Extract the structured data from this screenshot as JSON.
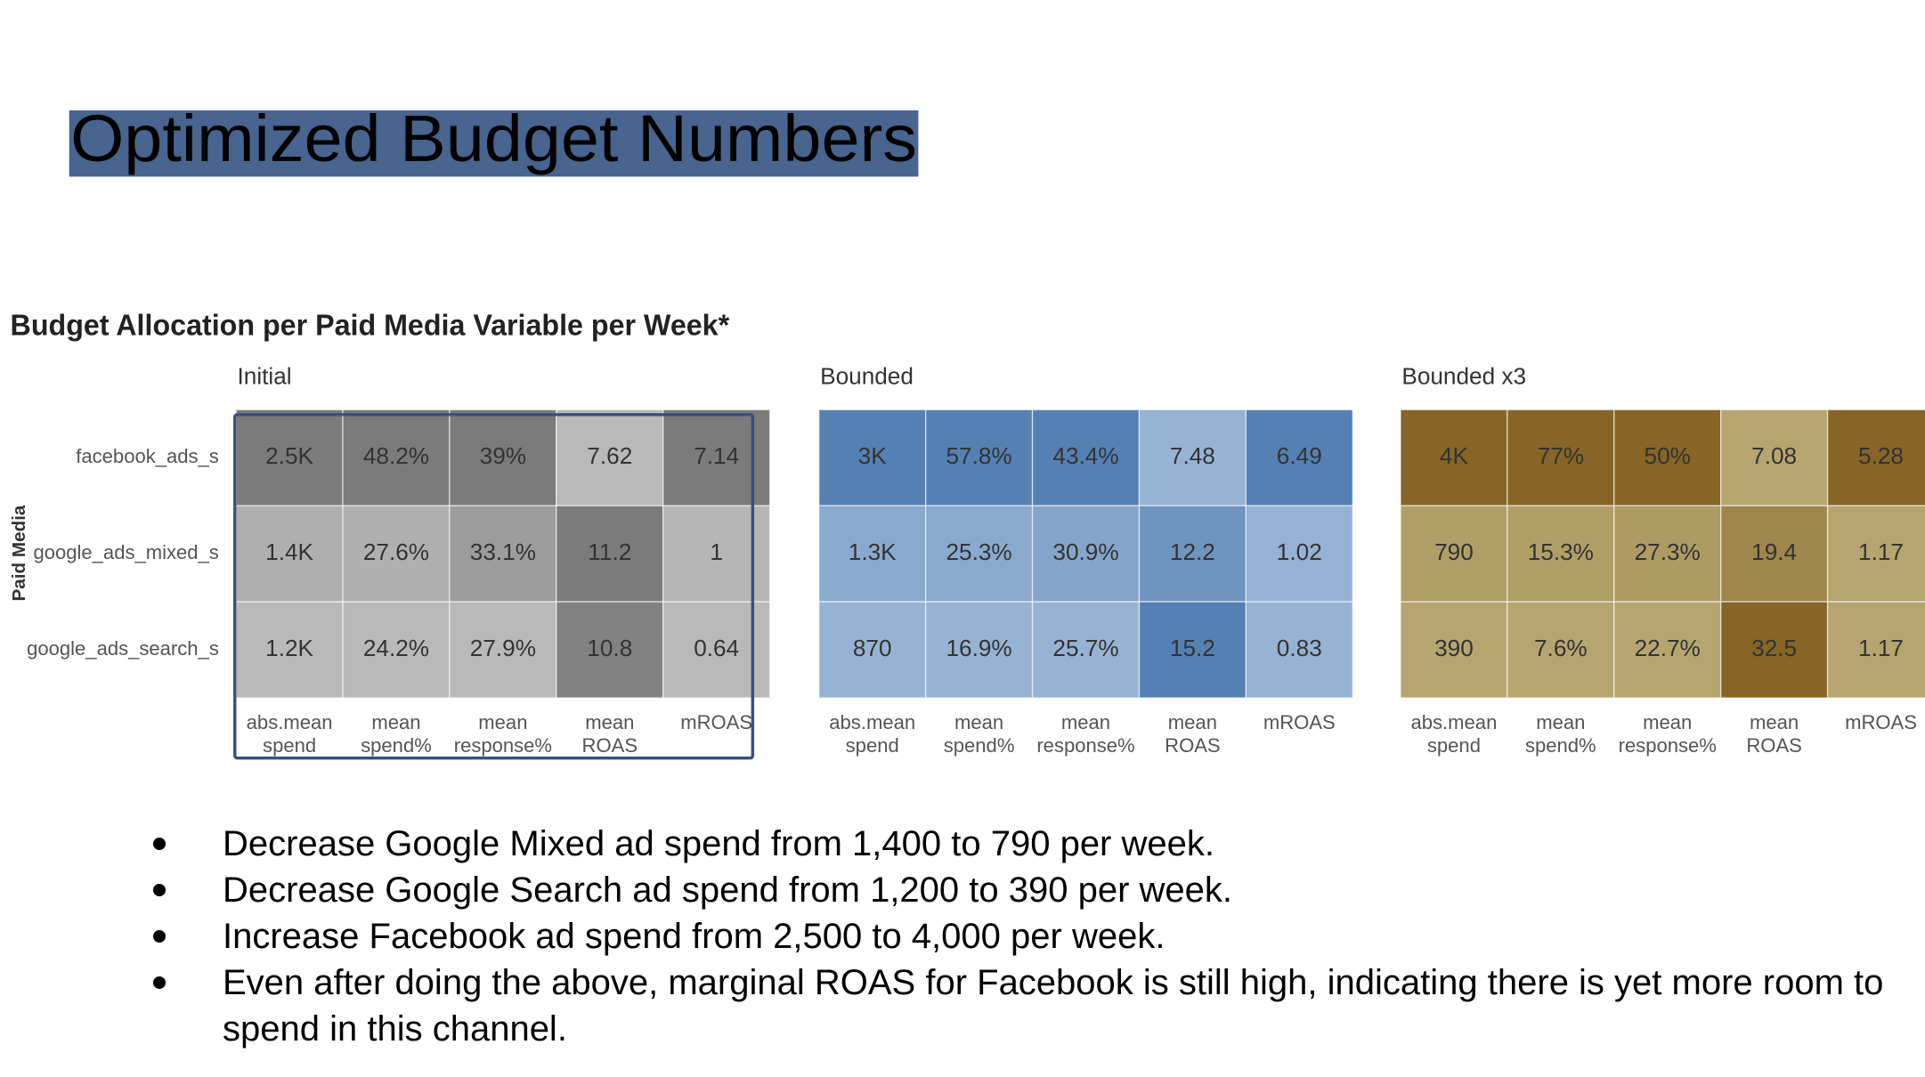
{
  "title": "Optimized Budget Numbers",
  "chart_data": {
    "type": "heatmap",
    "title": "Budget Allocation per Paid Media Variable per Week*",
    "y_label": "Paid Media",
    "rows": [
      "facebook_ads_s",
      "google_ads_mixed_s",
      "google_ads_search_s"
    ],
    "columns": [
      [
        "abs.mean",
        "spend"
      ],
      [
        "mean",
        "spend%"
      ],
      [
        "mean",
        "response%"
      ],
      [
        "mean",
        "ROAS"
      ],
      [
        "mROAS"
      ]
    ],
    "panels": [
      {
        "name": "Initial",
        "colors": [
          "#b9b9b9",
          "#7b7b7b"
        ],
        "values": [
          [
            2500,
            48.2,
            39,
            7.62,
            7.14
          ],
          [
            1400,
            27.6,
            33.1,
            11.2,
            1
          ],
          [
            1200,
            24.2,
            27.9,
            10.8,
            0.64
          ]
        ],
        "value_labels": [
          [
            "2.5K",
            "48.2%",
            "39%",
            "7.62",
            "7.14"
          ],
          [
            "1.4K",
            "27.6%",
            "33.1%",
            "11.2",
            "1"
          ],
          [
            "1.2K",
            "24.2%",
            "27.9%",
            "10.8",
            "0.64"
          ]
        ]
      },
      {
        "name": "Bounded",
        "colors": [
          "#97b3d4",
          "#5580b4"
        ],
        "values": [
          [
            3000,
            57.8,
            43.4,
            7.48,
            6.49
          ],
          [
            1300,
            25.3,
            30.9,
            12.2,
            1.02
          ],
          [
            870,
            16.9,
            25.7,
            15.2,
            0.83
          ]
        ],
        "value_labels": [
          [
            "3K",
            "57.8%",
            "43.4%",
            "7.48",
            "6.49"
          ],
          [
            "1.3K",
            "25.3%",
            "30.9%",
            "12.2",
            "1.02"
          ],
          [
            "870",
            "16.9%",
            "25.7%",
            "15.2",
            "0.83"
          ]
        ]
      },
      {
        "name": "Bounded x3",
        "colors": [
          "#b6a56f",
          "#866526"
        ],
        "values": [
          [
            4000,
            77,
            50,
            7.08,
            5.28
          ],
          [
            790,
            15.3,
            27.3,
            19.4,
            1.17
          ],
          [
            390,
            7.6,
            22.7,
            32.5,
            1.17
          ]
        ],
        "value_labels": [
          [
            "4K",
            "77%",
            "50%",
            "7.08",
            "5.28"
          ],
          [
            "790",
            "15.3%",
            "27.3%",
            "19.4",
            "1.17"
          ],
          [
            "390",
            "7.6%",
            "22.7%",
            "32.5",
            "1.17"
          ]
        ]
      }
    ]
  },
  "bullets": [
    "Decrease Google Mixed ad spend from 1,400 to 790 per week.",
    "Decrease Google Search ad spend from 1,200 to 390 per week.",
    "Increase Facebook ad spend from 2,500 to 4,000 per week.",
    "Even after doing the above, marginal ROAS for Facebook is still high, indicating there is yet more room to spend in this channel."
  ]
}
